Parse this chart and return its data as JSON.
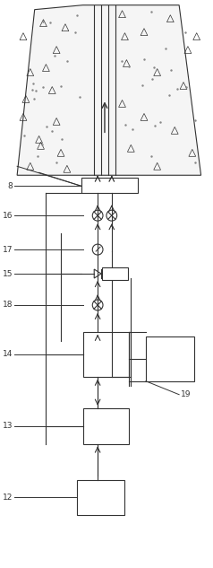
{
  "fig_width": 2.38,
  "fig_height": 6.33,
  "dpi": 100,
  "bg_color": "#ffffff",
  "lc": "#333333"
}
